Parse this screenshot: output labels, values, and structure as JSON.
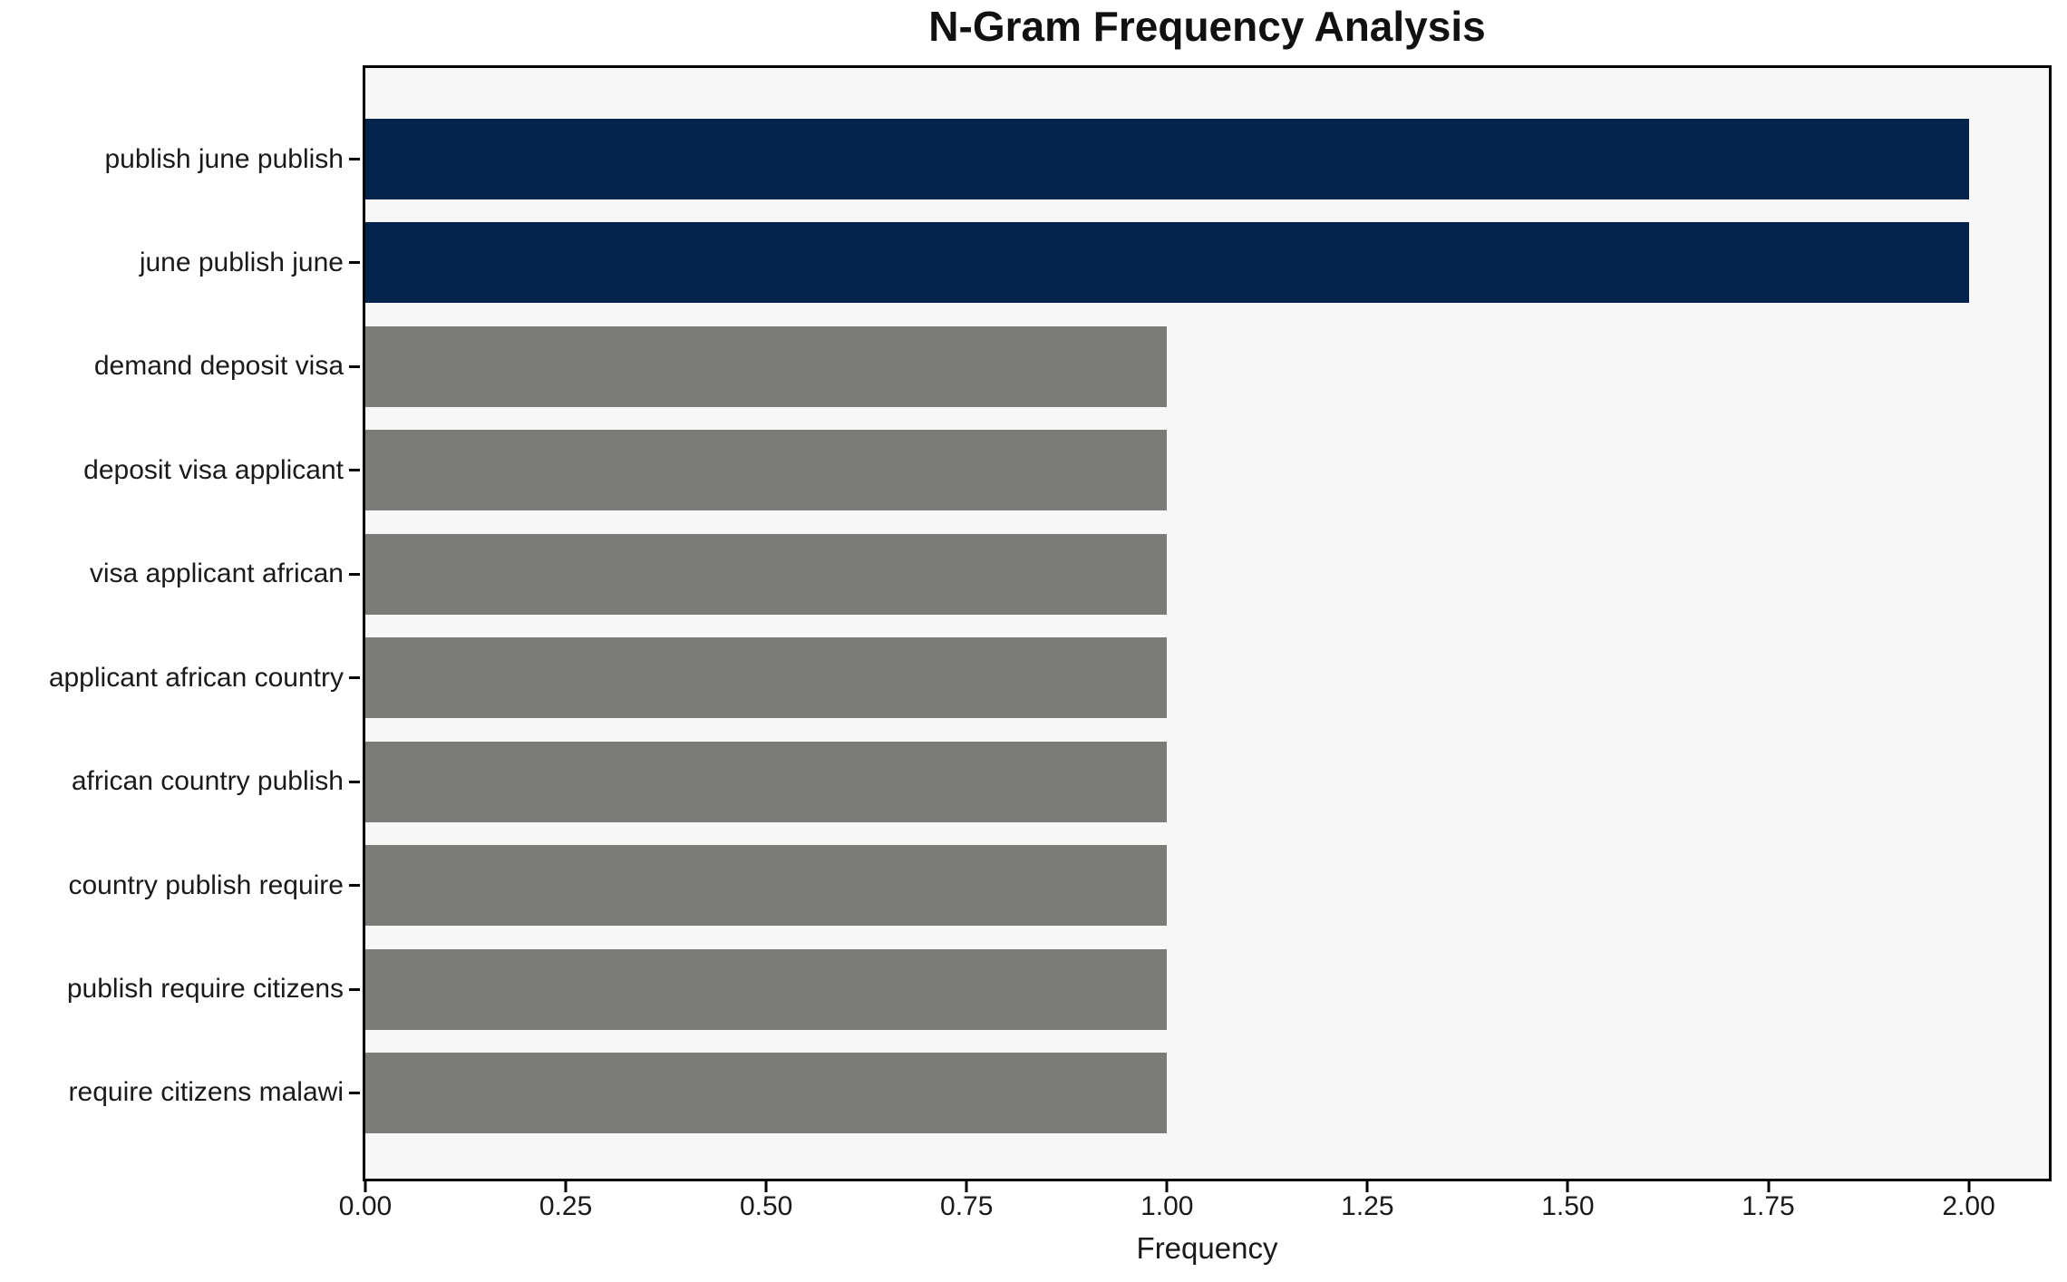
{
  "chart_data": {
    "type": "bar",
    "orientation": "horizontal",
    "title": "N-Gram Frequency Analysis",
    "xlabel": "Frequency",
    "ylabel": "",
    "categories": [
      "publish june publish",
      "june publish june",
      "demand deposit visa",
      "deposit visa applicant",
      "visa applicant african",
      "applicant african country",
      "african country publish",
      "country publish require",
      "publish require citizens",
      "require citizens malawi"
    ],
    "values": [
      2,
      2,
      1,
      1,
      1,
      1,
      1,
      1,
      1,
      1
    ],
    "bar_colors": [
      "highlight",
      "highlight",
      "default",
      "default",
      "default",
      "default",
      "default",
      "default",
      "default",
      "default"
    ],
    "xlim": [
      0,
      2.1
    ],
    "x_tick_values": [
      0,
      0.25,
      0.5,
      0.75,
      1.0,
      1.25,
      1.5,
      1.75,
      2.0
    ],
    "x_tick_labels": [
      "0.00",
      "0.25",
      "0.50",
      "0.75",
      "1.00",
      "1.25",
      "1.50",
      "1.75",
      "2.00"
    ],
    "grid": false,
    "legend_position": "none",
    "colors": {
      "highlight": "#04234d",
      "default": "#7b7b77",
      "plot_background": "#f8f7f7",
      "figure_background": "#ffffff",
      "spine": "#000000",
      "text": "#1a1a1a"
    }
  }
}
